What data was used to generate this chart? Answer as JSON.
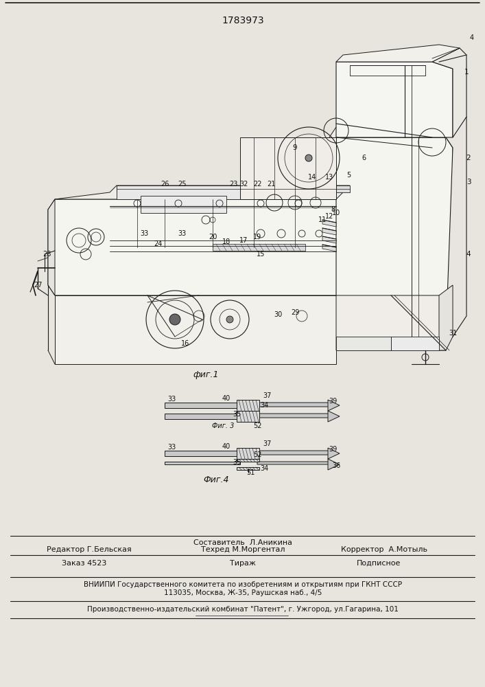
{
  "patent_number": "1783973",
  "page_color": "#e8e5df",
  "line_color": "#1a1a1a",
  "fig1_caption": "фиг.1",
  "fig3_caption": "Фиг. 3",
  "fig4_caption": "Фиг.4",
  "footer_sestavitel_label": "Составитель  Л.Аникина",
  "footer_redaktor": "Редактор Г.Бельская",
  "footer_tehred": "Техред М.Моргентал",
  "footer_korrektor": "Корректор  А.Мотыль",
  "footer_zakaz": "Заказ 4523",
  "footer_tirazh": "Тираж",
  "footer_podpisnoe": "Подписное",
  "footer_vniiipi": "ВНИИПИ Государственного комитета по изобретениям и открытиям при ГКНТ СССР",
  "footer_address": "113035, Москва, Ж-35, Раушская наб., 4/5",
  "footer_publisher": "Производственно-издательский комбинат \"Патент\", г. Ужгород, ул.Гагарина, 101"
}
